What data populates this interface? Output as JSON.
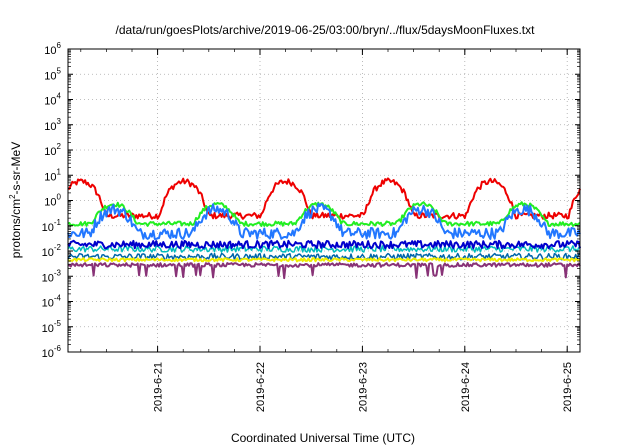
{
  "chart_data": {
    "type": "line",
    "title": "/data/run/goesPlots/archive/2019-06-25/03:00/bryn/../flux/5daysMoonFluxes.txt",
    "xlabel": "Coordinated Universal Time (UTC)",
    "ylabel_parts": [
      "protons/cm",
      "2",
      "-s-sr-MeV"
    ],
    "y_scale": "log",
    "ylim": [
      1e-06,
      1000000.0
    ],
    "y_ticks": [
      {
        "base": "10",
        "exp": "-6",
        "value": -6
      },
      {
        "base": "10",
        "exp": "-5",
        "value": -5
      },
      {
        "base": "10",
        "exp": "-4",
        "value": -4
      },
      {
        "base": "10",
        "exp": "-3",
        "value": -3
      },
      {
        "base": "10",
        "exp": "-2",
        "value": -2
      },
      {
        "base": "10",
        "exp": "-1",
        "value": -1
      },
      {
        "base": "10",
        "exp": "0",
        "value": 0
      },
      {
        "base": "10",
        "exp": "1",
        "value": 1
      },
      {
        "base": "10",
        "exp": "2",
        "value": 2
      },
      {
        "base": "10",
        "exp": "3",
        "value": 3
      },
      {
        "base": "10",
        "exp": "4",
        "value": 4
      },
      {
        "base": "10",
        "exp": "5",
        "value": 5
      },
      {
        "base": "10",
        "exp": "6",
        "value": 6
      }
    ],
    "xlim": [
      "2019-06-20T03:00",
      "2019-06-25T03:00"
    ],
    "x_ticks": [
      {
        "label": "2019-6-21",
        "date": "2019-06-21T00:00"
      },
      {
        "label": "2019-6-22",
        "date": "2019-06-22T00:00"
      },
      {
        "label": "2019-6-23",
        "date": "2019-06-23T00:00"
      },
      {
        "label": "2019-6-24",
        "date": "2019-06-24T00:00"
      },
      {
        "label": "2019-6-25",
        "date": "2019-06-25T00:00"
      }
    ],
    "grid": true,
    "series": [
      {
        "color": "#ee0000",
        "base": 0.25,
        "amp": 1.35,
        "noise": 0.25,
        "phase": 0.32,
        "dip": 0,
        "lw": 2
      },
      {
        "color": "#22ee22",
        "base": 0.12,
        "amp": 0.15,
        "noise": 0.18,
        "phase": 0.0,
        "dip": 0,
        "lw": 2
      },
      {
        "color": "#2277ff",
        "base": 0.05,
        "amp": 0.1,
        "noise": 0.45,
        "phase": 0.0,
        "dip": 0,
        "lw": 2
      },
      {
        "color": "#00bbbb",
        "base": 0.012,
        "amp": 0.0,
        "noise": 0.25,
        "phase": 0.0,
        "dip": 0,
        "lw": 1.5
      },
      {
        "color": "#0000cc",
        "base": 0.018,
        "amp": 0.0,
        "noise": 0.3,
        "phase": 0.0,
        "dip": 0,
        "lw": 2
      },
      {
        "color": "#0066aa",
        "base": 0.006,
        "amp": 0.0,
        "noise": 0.25,
        "phase": 0.0,
        "dip": 0,
        "lw": 1.5
      },
      {
        "color": "#eeee00",
        "base": 0.0045,
        "amp": 0.0,
        "noise": 0.12,
        "phase": 0.0,
        "dip": 0,
        "lw": 2
      },
      {
        "color": "#883377",
        "base": 0.0028,
        "amp": 0.0,
        "noise": 0.15,
        "phase": 0.0,
        "dip": 1,
        "lw": 2
      }
    ]
  }
}
